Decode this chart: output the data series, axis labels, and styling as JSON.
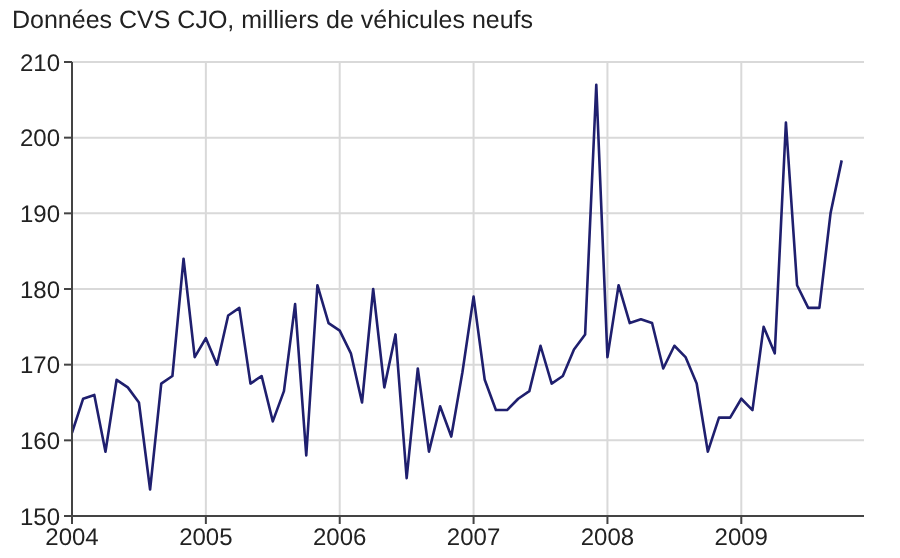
{
  "chart_data": {
    "type": "line",
    "title": "Données CVS CJO, milliers de véhicules neufs",
    "x": [
      "2004-01",
      "2004-02",
      "2004-03",
      "2004-04",
      "2004-05",
      "2004-06",
      "2004-07",
      "2004-08",
      "2004-09",
      "2004-10",
      "2004-11",
      "2004-12",
      "2005-01",
      "2005-02",
      "2005-03",
      "2005-04",
      "2005-05",
      "2005-06",
      "2005-07",
      "2005-08",
      "2005-09",
      "2005-10",
      "2005-11",
      "2005-12",
      "2006-01",
      "2006-02",
      "2006-03",
      "2006-04",
      "2006-05",
      "2006-06",
      "2006-07",
      "2006-08",
      "2006-09",
      "2006-10",
      "2006-11",
      "2006-12",
      "2007-01",
      "2007-02",
      "2007-03",
      "2007-04",
      "2007-05",
      "2007-06",
      "2007-07",
      "2007-08",
      "2007-09",
      "2007-10",
      "2007-11",
      "2007-12",
      "2008-01",
      "2008-02",
      "2008-03",
      "2008-04",
      "2008-05",
      "2008-06",
      "2008-07",
      "2008-08",
      "2008-09",
      "2008-10",
      "2008-11",
      "2008-12",
      "2009-01",
      "2009-02",
      "2009-03",
      "2009-04",
      "2009-05",
      "2009-06",
      "2009-07",
      "2009-08",
      "2009-09",
      "2009-10"
    ],
    "series": [
      {
        "color": "#1f1f6e",
        "values": [
          161,
          165.5,
          166,
          158.5,
          168,
          167,
          165,
          153.5,
          167.5,
          168.5,
          184,
          171,
          173.5,
          170,
          176.5,
          177.5,
          167.5,
          168.5,
          162.5,
          166.5,
          178,
          158,
          180.5,
          175.5,
          174.5,
          171.5,
          165,
          180,
          167,
          174,
          155,
          169.5,
          158.5,
          164.5,
          160.5,
          169,
          179,
          168,
          164,
          164,
          165.5,
          166.5,
          172.5,
          167.5,
          168.5,
          172,
          174,
          207,
          171,
          180.5,
          175.5,
          176,
          175.5,
          169.5,
          172.5,
          171,
          167.5,
          158.5,
          163,
          163,
          165.5,
          164,
          175,
          171.5,
          202,
          180.5,
          177.5,
          177.5,
          190,
          197
        ]
      }
    ],
    "xlim": [
      "2004",
      "2009-12"
    ],
    "xticks": [
      "2004",
      "2005",
      "2006",
      "2007",
      "2008",
      "2009"
    ],
    "ylim": [
      150,
      210
    ],
    "yticks": [
      150,
      160,
      170,
      180,
      190,
      200,
      210
    ],
    "grid": true,
    "marker": "none",
    "line_style": "solid"
  }
}
